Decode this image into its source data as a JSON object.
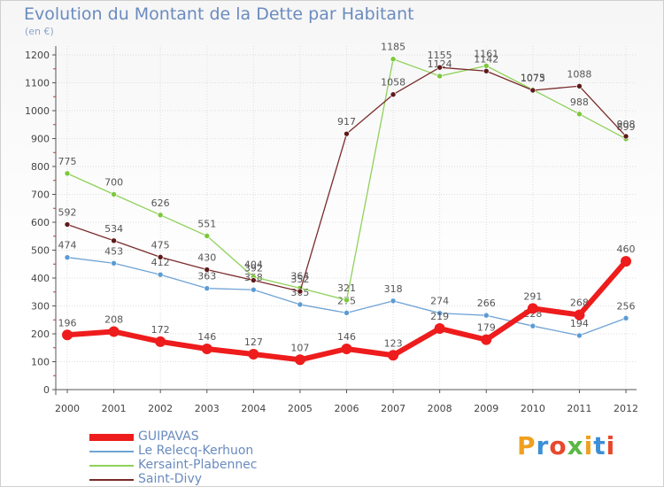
{
  "header": {
    "title": "Evolution du Montant de la Dette par Habitant",
    "subtitle": "(en €)"
  },
  "brand": {
    "letters": [
      "P",
      "r",
      "o",
      "x",
      "i",
      "t",
      "i"
    ],
    "colors": [
      "#f0a020",
      "#3c8fd6",
      "#e8482c",
      "#5bb844",
      "#f0a020",
      "#3c8fd6",
      "#e8482c"
    ]
  },
  "colors": {
    "axis": "#555555",
    "grid": "#dddddd",
    "tick_minor": "#cc3333",
    "label": "#444444",
    "value_label": "#555555"
  },
  "chart_data": {
    "type": "line",
    "title": "Evolution du Montant de la Dette par Habitant",
    "ylabel": "(en €)",
    "xlabel": "",
    "ylim": [
      0,
      1200
    ],
    "yticks": [
      0,
      100,
      200,
      300,
      400,
      500,
      600,
      700,
      800,
      900,
      1000,
      1100,
      1200
    ],
    "grid": true,
    "legend_position": "bottom-left",
    "x": [
      "2000",
      "2001",
      "2002",
      "2003",
      "2004",
      "2005",
      "2006",
      "2007",
      "2008",
      "2009",
      "2010",
      "2011",
      "2012"
    ],
    "series": [
      {
        "name": "GUIPAVAS",
        "key": "guipavas",
        "color": "#ee1c1c",
        "point_color": "#ee1c1c",
        "width": 6,
        "values": [
          196,
          208,
          172,
          146,
          127,
          107,
          146,
          123,
          219,
          179,
          291,
          268,
          460
        ]
      },
      {
        "name": "Le Relecq-Kerhuon",
        "key": "relecq",
        "color": "#6fa3d4",
        "point_color": "#5b9bd5",
        "width": 1.3,
        "values": [
          474,
          453,
          412,
          363,
          358,
          305,
          275,
          318,
          274,
          266,
          228,
          194,
          256
        ]
      },
      {
        "name": "Kersaint-Plabennec",
        "key": "kersaint",
        "color": "#8fd15a",
        "point_color": "#7cc73b",
        "width": 1.3,
        "values": [
          775,
          700,
          626,
          551,
          404,
          364,
          321,
          1185,
          1124,
          1161,
          1075,
          988,
          899
        ]
      },
      {
        "name": "Saint-Divy",
        "key": "saintdivy",
        "color": "#7a2b2b",
        "point_color": "#5e1a1a",
        "width": 1.3,
        "values": [
          592,
          534,
          475,
          430,
          392,
          352,
          917,
          1058,
          1155,
          1142,
          1073,
          1088,
          908
        ]
      }
    ]
  }
}
